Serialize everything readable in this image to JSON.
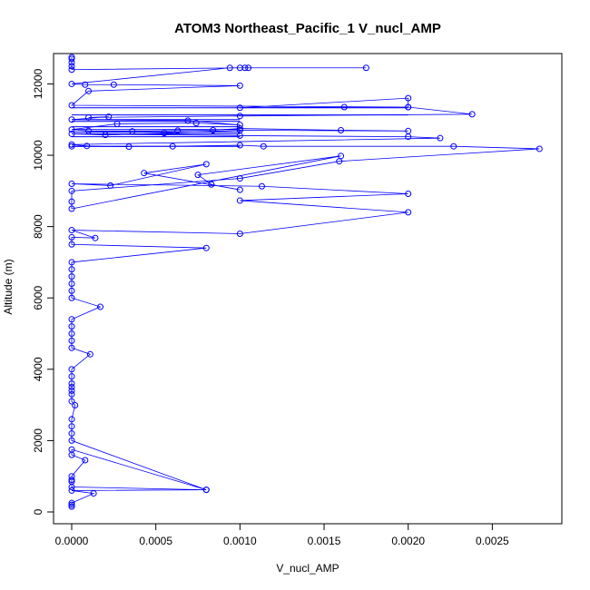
{
  "chart_data": {
    "type": "line",
    "title": "ATOM3 Northeast_Pacific_1 V_nucl_AMP",
    "xlabel": "V_nucl_AMP",
    "ylabel": "Altitude (m)",
    "xlim": [
      0,
      0.0028
    ],
    "ylim": [
      0,
      12800
    ],
    "xticks": [
      0.0,
      0.0005,
      0.001,
      0.0015,
      0.002,
      0.0025
    ],
    "xtick_labels": [
      "0.0000",
      "0.0005",
      "0.0010",
      "0.0015",
      "0.0020",
      "0.0025"
    ],
    "yticks": [
      0,
      2000,
      4000,
      6000,
      8000,
      10000,
      12000
    ],
    "ytick_labels": [
      "0",
      "2000",
      "4000",
      "6000",
      "8000",
      "10000",
      "12000"
    ],
    "grid": false,
    "legend": "none",
    "series_color": "#0000ff",
    "markers": "open-circle",
    "series": [
      {
        "points": [
          [
            0,
            150
          ],
          [
            0,
            200
          ],
          [
            0,
            250
          ],
          [
            0.00013,
            520
          ],
          [
            0,
            600
          ],
          [
            0.0008,
            620
          ],
          [
            0,
            700
          ],
          [
            0,
            850
          ],
          [
            0,
            900
          ],
          [
            0,
            1000
          ],
          [
            8e-05,
            1450
          ],
          [
            0,
            1600
          ],
          [
            0,
            1750
          ],
          [
            0.0008,
            620
          ],
          [
            0,
            2000
          ],
          [
            0,
            2200
          ],
          [
            0,
            2400
          ],
          [
            0,
            2600
          ],
          [
            2e-05,
            2990
          ],
          [
            0,
            3100
          ],
          [
            0,
            3300
          ],
          [
            0,
            3400
          ],
          [
            0,
            3500
          ],
          [
            0,
            3600
          ],
          [
            0,
            3800
          ],
          [
            0,
            4000
          ],
          [
            0.00011,
            4420
          ],
          [
            0,
            4600
          ],
          [
            0,
            4800
          ],
          [
            0,
            5000
          ],
          [
            0,
            5200
          ],
          [
            0,
            5400
          ],
          [
            0.00017,
            5750
          ],
          [
            0,
            6000
          ],
          [
            0,
            6200
          ],
          [
            0,
            6400
          ],
          [
            0,
            6600
          ],
          [
            0,
            6800
          ],
          [
            0,
            7000
          ],
          [
            0.0008,
            7400
          ],
          [
            0,
            7500
          ],
          [
            0,
            7700
          ],
          [
            0.00014,
            7680
          ],
          [
            0,
            7900
          ],
          [
            0.001,
            7800
          ],
          [
            0.002,
            8400
          ],
          [
            0.001,
            8730
          ],
          [
            0.002,
            8920
          ],
          [
            0.00113,
            9130
          ],
          [
            0,
            9200
          ],
          [
            0.00023,
            9150
          ],
          [
            0.0008,
            9750
          ],
          [
            0.00043,
            9500
          ],
          [
            0.001,
            9030
          ],
          [
            0.00083,
            9180
          ],
          [
            0.00075,
            9450
          ],
          [
            0.0016,
            9980
          ],
          [
            0,
            8500
          ],
          [
            0,
            8700
          ],
          [
            0,
            9000
          ],
          [
            0.001,
            9350
          ],
          [
            0.00159,
            9830
          ],
          [
            0.00278,
            10180
          ],
          [
            0.00227,
            10250
          ],
          [
            0.00114,
            10250
          ],
          [
            0.001,
            10280
          ],
          [
            0.0006,
            10250
          ],
          [
            0,
            10250
          ],
          [
            0.00034,
            10240
          ],
          [
            9e-05,
            10260
          ],
          [
            0,
            10300
          ],
          [
            0.00219,
            10480
          ],
          [
            0.002,
            10520
          ],
          [
            0.001,
            10550
          ],
          [
            0,
            10600
          ],
          [
            0.0002,
            10570
          ],
          [
            0.00055,
            10620
          ],
          [
            0.001,
            10700
          ],
          [
            0.002,
            10680
          ],
          [
            0.0016,
            10700
          ],
          [
            0.001,
            10750
          ],
          [
            0.00084,
            10700
          ],
          [
            0.00063,
            10690
          ],
          [
            0.00036,
            10670
          ],
          [
            0.0001,
            10680
          ],
          [
            0,
            10720
          ],
          [
            0.00027,
            10880
          ],
          [
            0.00074,
            10900
          ],
          [
            0.001,
            10850
          ],
          [
            0.00069,
            10970
          ],
          [
            0,
            11000
          ],
          [
            0.00022,
            11080
          ],
          [
            0.0001,
            11060
          ],
          [
            0.001,
            11100
          ],
          [
            0.00238,
            11150
          ],
          [
            0.002,
            11350
          ],
          [
            0.00162,
            11350
          ],
          [
            0.001,
            11330
          ],
          [
            0.002,
            11600
          ],
          [
            0.002,
            11350
          ],
          [
            0,
            11400
          ],
          [
            0.0001,
            11800
          ],
          [
            0.001,
            11950
          ],
          [
            0.00025,
            11980
          ],
          [
            8e-05,
            11980
          ],
          [
            0,
            12000
          ],
          [
            0.00094,
            12450
          ],
          [
            0.00103,
            12450
          ],
          [
            0.00105,
            12450
          ],
          [
            0.00175,
            12450
          ],
          [
            0.001,
            12450
          ],
          [
            0,
            12400
          ],
          [
            0,
            12500
          ],
          [
            0,
            12600
          ],
          [
            0,
            12700
          ],
          [
            0,
            12750
          ]
        ]
      }
    ],
    "horizontal_segments": [
      [
        [
          0,
          10520
        ],
        [
          0.001,
          10520
        ]
      ],
      [
        [
          0,
          10600
        ],
        [
          0.001,
          10600
        ]
      ],
      [
        [
          0,
          10650
        ],
        [
          0.001,
          10650
        ]
      ],
      [
        [
          0,
          10720
        ],
        [
          0.001,
          10720
        ]
      ],
      [
        [
          0,
          10800
        ],
        [
          0.001,
          10800
        ]
      ],
      [
        [
          0,
          10950
        ],
        [
          0.001,
          10950
        ]
      ],
      [
        [
          0,
          11000
        ],
        [
          0.001,
          11000
        ]
      ],
      [
        [
          0,
          11130
        ],
        [
          0.002,
          11130
        ]
      ],
      [
        [
          0,
          11330
        ],
        [
          0.002,
          11330
        ]
      ],
      [
        [
          0,
          10250
        ],
        [
          0.001,
          10250
        ]
      ]
    ]
  }
}
